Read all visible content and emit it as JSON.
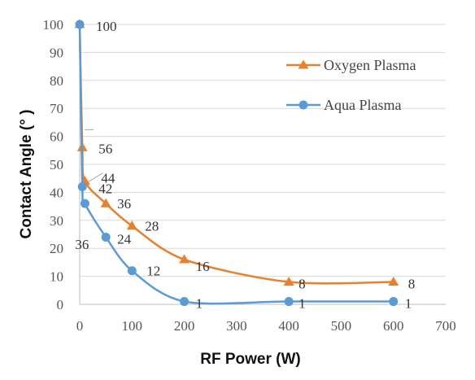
{
  "chart_data": {
    "type": "line",
    "title": "",
    "xlabel": "RF Power (W)",
    "ylabel": "Contact Angle (° )",
    "xlim": [
      0,
      700
    ],
    "ylim": [
      0,
      100
    ],
    "x_ticks": [
      "0",
      "100",
      "200",
      "300",
      "400",
      "500",
      "600",
      "700"
    ],
    "y_ticks": [
      "0",
      "10",
      "20",
      "30",
      "40",
      "50",
      "60",
      "70",
      "80",
      "90",
      "100"
    ],
    "grid": "horizontal",
    "legend_position": "top-right",
    "series": [
      {
        "name": "Oxygen Plasma",
        "color": "#E8812D",
        "marker": "triangle",
        "x": [
          0,
          5,
          10,
          50,
          100,
          200,
          400,
          600
        ],
        "values": [
          100,
          56,
          44,
          36,
          28,
          16,
          8,
          8
        ],
        "labels": [
          "100",
          "56",
          "44",
          "36",
          "28",
          "16",
          "8",
          "8"
        ]
      },
      {
        "name": "Aqua Plasma",
        "color": "#5B9BD5",
        "marker": "circle",
        "x": [
          0,
          5,
          10,
          50,
          100,
          200,
          400,
          600
        ],
        "values": [
          100,
          42,
          36,
          24,
          12,
          1,
          1,
          1
        ],
        "labels": [
          "100",
          "42",
          "36",
          "24",
          "12",
          "1",
          "1",
          "1"
        ]
      }
    ]
  }
}
